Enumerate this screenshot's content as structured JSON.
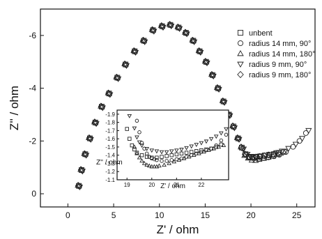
{
  "chart_data": {
    "type": "scatter",
    "title": "",
    "xlabel": "Z' / ohm",
    "ylabel": "Z'' / ohm",
    "xlim": [
      -3,
      27
    ],
    "ylim": [
      0.5,
      -7
    ],
    "y_inverted": true,
    "x_ticks": [
      0,
      5,
      10,
      15,
      20,
      25
    ],
    "y_ticks": [
      0,
      -2,
      -4,
      -6
    ],
    "grid": false,
    "legend_position": "right",
    "series": [
      {
        "name": "unbent",
        "marker": "square",
        "x": [
          1.2,
          1.5,
          1.9,
          2.4,
          3.0,
          3.7,
          4.5,
          5.4,
          6.3,
          7.3,
          8.3,
          9.3,
          10.3,
          11.2,
          12.1,
          12.9,
          13.7,
          14.4,
          15.1,
          15.8,
          16.4,
          17.0,
          17.6,
          18.1,
          18.6,
          19.0,
          19.4,
          19.8,
          20.2,
          20.6,
          21.0,
          21.5,
          22.0,
          22.5,
          23.0,
          23.6
        ],
        "y": [
          -0.3,
          -0.9,
          -1.5,
          -2.1,
          -2.7,
          -3.3,
          -3.8,
          -4.4,
          -4.9,
          -5.4,
          -5.8,
          -6.2,
          -6.35,
          -6.4,
          -6.3,
          -6.1,
          -5.8,
          -5.4,
          -5.0,
          -4.5,
          -4.0,
          -3.5,
          -3.0,
          -2.55,
          -2.1,
          -1.75,
          -1.5,
          -1.4,
          -1.38,
          -1.4,
          -1.42,
          -1.45,
          -1.48,
          -1.5,
          -1.55,
          -1.6
        ]
      },
      {
        "name": "radius 14 mm, 90°",
        "marker": "circle",
        "x": [
          1.25,
          1.55,
          1.95,
          2.45,
          3.05,
          3.75,
          4.55,
          5.45,
          6.35,
          7.35,
          8.35,
          9.35,
          10.35,
          11.25,
          12.15,
          12.95,
          13.75,
          14.45,
          15.15,
          15.85,
          16.45,
          17.05,
          17.65,
          18.15,
          18.65,
          19.1,
          19.5,
          19.9,
          20.4,
          20.9,
          21.4,
          21.9,
          22.5,
          23.1,
          23.8,
          24.6,
          25.3,
          26.0
        ],
        "y": [
          -0.28,
          -0.88,
          -1.48,
          -2.08,
          -2.68,
          -3.28,
          -3.78,
          -4.38,
          -4.88,
          -5.38,
          -5.78,
          -6.18,
          -6.33,
          -6.38,
          -6.28,
          -6.08,
          -5.78,
          -5.38,
          -4.98,
          -4.48,
          -3.98,
          -3.48,
          -2.98,
          -2.52,
          -2.08,
          -1.72,
          -1.48,
          -1.38,
          -1.35,
          -1.33,
          -1.35,
          -1.38,
          -1.42,
          -1.48,
          -1.58,
          -1.78,
          -2.0,
          -2.3
        ]
      },
      {
        "name": "radius 14 mm, 180°",
        "marker": "triangle-up",
        "x": [
          1.1,
          1.4,
          1.8,
          2.3,
          2.9,
          3.6,
          4.4,
          5.3,
          6.2,
          7.2,
          8.2,
          9.2,
          10.2,
          11.1,
          12.0,
          12.8,
          13.6,
          14.3,
          15.0,
          15.7,
          16.3,
          16.9,
          17.5,
          18.0,
          18.5,
          18.9,
          19.3,
          19.7,
          20.1,
          20.5,
          20.9,
          21.4,
          21.9,
          22.4,
          22.9
        ],
        "y": [
          -0.32,
          -0.92,
          -1.52,
          -2.12,
          -2.72,
          -3.32,
          -3.82,
          -4.42,
          -4.92,
          -5.42,
          -5.82,
          -6.22,
          -6.37,
          -6.42,
          -6.32,
          -6.12,
          -5.82,
          -5.42,
          -5.02,
          -4.52,
          -4.02,
          -3.52,
          -3.02,
          -2.57,
          -2.12,
          -1.77,
          -1.45,
          -1.35,
          -1.27,
          -1.26,
          -1.3,
          -1.34,
          -1.38,
          -1.42,
          -1.48
        ]
      },
      {
        "name": "radius 9 mm, 90°",
        "marker": "triangle-down",
        "x": [
          1.3,
          1.6,
          2.0,
          2.5,
          3.1,
          3.8,
          4.6,
          5.5,
          6.4,
          7.4,
          8.4,
          9.4,
          10.4,
          11.3,
          12.2,
          13.0,
          13.8,
          14.5,
          15.2,
          15.9,
          16.5,
          17.1,
          17.7,
          18.2,
          18.7,
          19.2,
          19.6,
          20.0,
          20.5,
          21.0,
          21.6,
          22.2,
          22.8,
          23.4,
          24.1,
          24.9,
          25.6,
          26.3
        ],
        "y": [
          -0.26,
          -0.86,
          -1.46,
          -2.06,
          -2.66,
          -3.26,
          -3.76,
          -4.36,
          -4.86,
          -5.36,
          -5.76,
          -6.16,
          -6.31,
          -6.36,
          -6.26,
          -6.06,
          -5.76,
          -5.36,
          -4.96,
          -4.46,
          -3.96,
          -3.46,
          -2.96,
          -2.5,
          -2.06,
          -1.7,
          -1.5,
          -1.42,
          -1.4,
          -1.42,
          -1.46,
          -1.5,
          -1.56,
          -1.62,
          -1.72,
          -1.88,
          -2.1,
          -2.4
        ]
      },
      {
        "name": "radius 9 mm, 180°",
        "marker": "diamond",
        "x": [
          1.15,
          1.45,
          1.85,
          2.35,
          2.95,
          3.65,
          4.45,
          5.35,
          6.25,
          7.25,
          8.25,
          9.25,
          10.25,
          11.15,
          12.05,
          12.85,
          13.65,
          14.35,
          15.05,
          15.75,
          16.35,
          16.95,
          17.55,
          18.05,
          18.55,
          18.95,
          19.35,
          19.75,
          20.15,
          20.55,
          20.95,
          21.45,
          21.95,
          22.45,
          22.95,
          23.5
        ],
        "y": [
          -0.31,
          -0.91,
          -1.51,
          -2.11,
          -2.71,
          -3.31,
          -3.81,
          -4.41,
          -4.91,
          -5.41,
          -5.81,
          -6.21,
          -6.36,
          -6.41,
          -6.31,
          -6.11,
          -5.81,
          -5.41,
          -5.01,
          -4.51,
          -4.01,
          -3.51,
          -3.01,
          -2.56,
          -2.11,
          -1.76,
          -1.5,
          -1.4,
          -1.37,
          -1.39,
          -1.41,
          -1.44,
          -1.47,
          -1.49,
          -1.53,
          -1.57
        ]
      }
    ],
    "inset": {
      "xlabel": "Z' / ohm",
      "ylabel": "Z'' / ohm",
      "xlim": [
        18.6,
        23.1
      ],
      "ylim": [
        -1.1,
        -1.95
      ],
      "x_ticks": [
        19,
        20,
        21,
        22
      ],
      "y_ticks": [
        -1.1,
        -1.2,
        -1.3,
        -1.4,
        -1.5,
        -1.6,
        -1.7,
        -1.8,
        -1.9
      ],
      "y_tick_labels": [
        "-1.1",
        "-1.2",
        "-1.3",
        "-1.4",
        "-1.5",
        "-1.6",
        "-1.7",
        "-1.8",
        "-1.9"
      ],
      "series": [
        {
          "marker": "circle",
          "x": [
            19.4,
            19.5,
            19.6,
            19.7,
            19.8,
            19.9,
            20.0,
            20.1,
            20.2,
            20.4,
            20.6,
            20.8,
            21.0,
            21.2,
            21.4,
            21.6,
            21.8,
            22.0,
            22.2,
            22.4,
            22.6,
            22.8,
            23.0
          ],
          "y": [
            -1.82,
            -1.68,
            -1.55,
            -1.48,
            -1.42,
            -1.38,
            -1.36,
            -1.35,
            -1.34,
            -1.33,
            -1.33,
            -1.34,
            -1.35,
            -1.36,
            -1.38,
            -1.4,
            -1.42,
            -1.44,
            -1.46,
            -1.48,
            -1.52,
            -1.58,
            -1.65
          ]
        },
        {
          "marker": "triangle-up",
          "x": [
            19.3,
            19.4,
            19.5,
            19.6,
            19.7,
            19.8,
            19.9,
            20.0,
            20.1,
            20.2,
            20.3,
            20.5,
            20.7,
            20.9,
            21.1,
            21.3,
            21.5,
            21.7,
            21.9,
            22.1,
            22.3,
            22.5,
            22.7,
            22.9
          ],
          "y": [
            -1.5,
            -1.42,
            -1.37,
            -1.33,
            -1.3,
            -1.28,
            -1.27,
            -1.26,
            -1.26,
            -1.26,
            -1.27,
            -1.28,
            -1.3,
            -1.32,
            -1.34,
            -1.36,
            -1.38,
            -1.4,
            -1.42,
            -1.44,
            -1.46,
            -1.48,
            -1.5,
            -1.52
          ]
        },
        {
          "marker": "triangle-down",
          "x": [
            19.1,
            19.3,
            19.4,
            19.5,
            19.6,
            19.8,
            20.0,
            20.2,
            20.4,
            20.6,
            20.8,
            21.0,
            21.2,
            21.4,
            21.6,
            21.8,
            22.0,
            22.2,
            22.4,
            22.6,
            22.8,
            23.0
          ],
          "y": [
            -1.88,
            -1.73,
            -1.62,
            -1.56,
            -1.52,
            -1.48,
            -1.46,
            -1.45,
            -1.44,
            -1.44,
            -1.45,
            -1.46,
            -1.47,
            -1.49,
            -1.51,
            -1.53,
            -1.55,
            -1.57,
            -1.6,
            -1.63,
            -1.67,
            -1.72
          ]
        },
        {
          "marker": "square",
          "x": [
            19.0,
            19.1,
            19.2,
            19.3,
            19.4,
            19.6,
            19.8,
            20.0,
            20.2,
            20.4,
            20.6,
            20.8,
            21.0,
            21.2,
            21.4,
            21.6,
            21.8,
            22.0,
            22.2,
            22.4,
            22.6,
            22.8
          ],
          "y": [
            -1.72,
            -1.6,
            -1.52,
            -1.47,
            -1.43,
            -1.4,
            -1.38,
            -1.37,
            -1.37,
            -1.38,
            -1.39,
            -1.4,
            -1.41,
            -1.42,
            -1.43,
            -1.44,
            -1.45,
            -1.46,
            -1.47,
            -1.48,
            -1.5,
            -1.53
          ]
        }
      ]
    }
  }
}
